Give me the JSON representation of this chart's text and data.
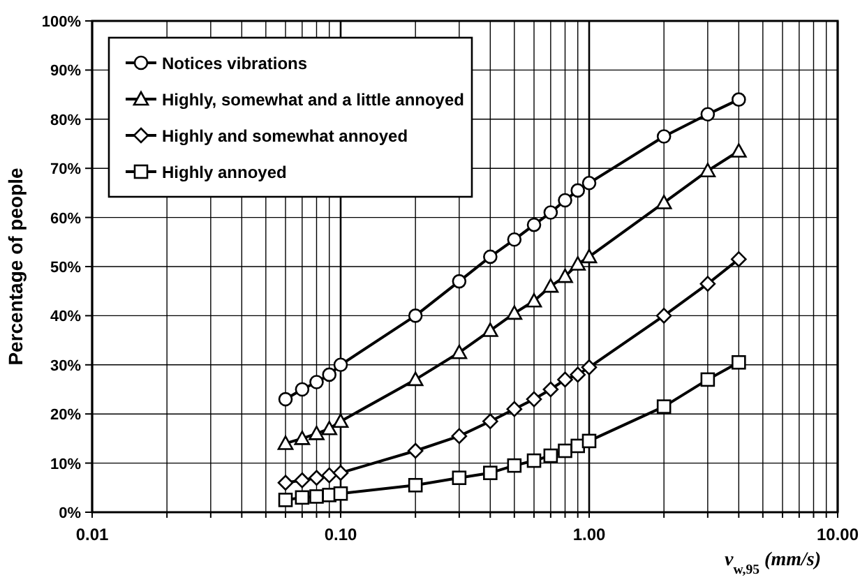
{
  "chart_data": {
    "type": "line",
    "xlabel": "v$_{w,95}$ (mm/s)",
    "ylabel": "Percentage of people",
    "log": "x",
    "grid": true,
    "legend": "top left",
    "line_style": "solid",
    "x": [
      0.06,
      0.07,
      0.08,
      0.09,
      0.1,
      0.2,
      0.3,
      0.4,
      0.5,
      0.6,
      0.7,
      0.8,
      0.9,
      1,
      2,
      3,
      4
    ],
    "xlim": [
      0.01,
      10
    ],
    "xticks": [
      {
        "value": 0.01,
        "label": "0.01"
      },
      {
        "value": 0.02,
        "label": null
      },
      {
        "value": 0.03,
        "label": null
      },
      {
        "value": 0.04,
        "label": null
      },
      {
        "value": 0.05,
        "label": null
      },
      {
        "value": 0.06,
        "label": null
      },
      {
        "value": 0.07,
        "label": null
      },
      {
        "value": 0.08,
        "label": null
      },
      {
        "value": 0.09,
        "label": null
      },
      {
        "value": 0.1,
        "label": "0.10"
      },
      {
        "value": 0.2,
        "label": null
      },
      {
        "value": 0.3,
        "label": null
      },
      {
        "value": 0.4,
        "label": null
      },
      {
        "value": 0.5,
        "label": null
      },
      {
        "value": 0.6,
        "label": null
      },
      {
        "value": 0.7,
        "label": null
      },
      {
        "value": 0.8,
        "label": null
      },
      {
        "value": 0.9,
        "label": null
      },
      {
        "value": 1,
        "label": "1.00"
      },
      {
        "value": 2,
        "label": null
      },
      {
        "value": 3,
        "label": null
      },
      {
        "value": 4,
        "label": null
      },
      {
        "value": 5,
        "label": null
      },
      {
        "value": 6,
        "label": null
      },
      {
        "value": 7,
        "label": null
      },
      {
        "value": 8,
        "label": null
      },
      {
        "value": 9,
        "label": null
      },
      {
        "value": 10,
        "label": "10.00"
      }
    ],
    "ylim": [
      0,
      100
    ],
    "yticks": [
      {
        "value": 0,
        "label": "0%"
      },
      {
        "value": 10,
        "label": "10%"
      },
      {
        "value": 20,
        "label": "20%"
      },
      {
        "value": 30,
        "label": "30%"
      },
      {
        "value": 40,
        "label": "40%"
      },
      {
        "value": 50,
        "label": "50%"
      },
      {
        "value": 60,
        "label": "60%"
      },
      {
        "value": 70,
        "label": "70%"
      },
      {
        "value": 80,
        "label": "80%"
      },
      {
        "value": 90,
        "label": "90%"
      },
      {
        "value": 100,
        "label": "100%"
      }
    ],
    "series": [
      {
        "name": "Notices vibrations",
        "color": "#000000",
        "marker": "circle",
        "values": [
          23,
          25,
          26.5,
          28,
          30,
          40,
          47,
          52,
          55.5,
          58.5,
          61,
          63.5,
          65.5,
          67,
          76.5,
          81,
          84
        ]
      },
      {
        "name": "Highly, somewhat and a little annoyed",
        "color": "#000000",
        "marker": "triangle",
        "values": [
          14,
          15,
          16,
          17,
          18.5,
          27,
          32.5,
          37,
          40.5,
          43,
          46,
          48,
          50.5,
          52,
          63,
          69.5,
          73.5
        ]
      },
      {
        "name": "Highly and somewhat annoyed",
        "color": "#000000",
        "marker": "diamond",
        "values": [
          6,
          6.5,
          7,
          7.5,
          8,
          12.5,
          15.5,
          18.5,
          21,
          23,
          25,
          27,
          28,
          29.5,
          40,
          46.5,
          51.5
        ]
      },
      {
        "name": "Highly annoyed",
        "color": "#000000",
        "marker": "square",
        "values": [
          2.5,
          3,
          3.2,
          3.5,
          3.8,
          5.5,
          7,
          8,
          9.5,
          10.5,
          11.5,
          12.5,
          13.5,
          14.5,
          21.5,
          27,
          30.5
        ]
      }
    ]
  }
}
